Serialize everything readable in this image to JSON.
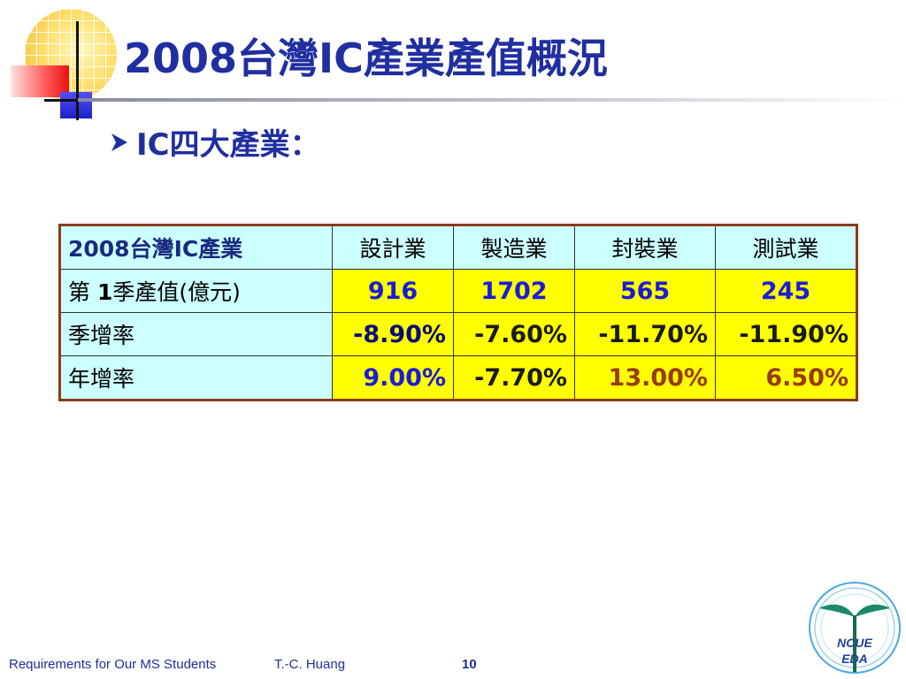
{
  "title": "2008台灣IC產業產值概況",
  "bullet": {
    "icon": "arrow-right-icon",
    "text": "IC四大產業："
  },
  "table": {
    "corner": "2008台灣IC產業",
    "headers": [
      "設計業",
      "製造業",
      "封裝業",
      "測試業"
    ],
    "rows": [
      {
        "label_prefix": "第 ",
        "label_bold": "1",
        "label_suffix": "季產值(億元)",
        "values": [
          "916",
          "1702",
          "565",
          "245"
        ]
      },
      {
        "label": "季增率",
        "values": [
          "-8.90%",
          "-7.60%",
          "-11.70%",
          "-11.90%"
        ]
      },
      {
        "label": "年增率",
        "values": [
          "9.00%",
          "-7.70%",
          "13.00%",
          "6.50%"
        ]
      }
    ]
  },
  "colors": {
    "title": "#1f2fa0",
    "header_bg": "#ccffff",
    "value_bg": "#ffff00",
    "table_border": "#8b3a1a"
  },
  "footer": {
    "course": "Requirements for Our MS Students",
    "author": "T.-C. Huang",
    "page": "10"
  },
  "emblem": {
    "line1": "NCUE",
    "line2": "EDA"
  }
}
